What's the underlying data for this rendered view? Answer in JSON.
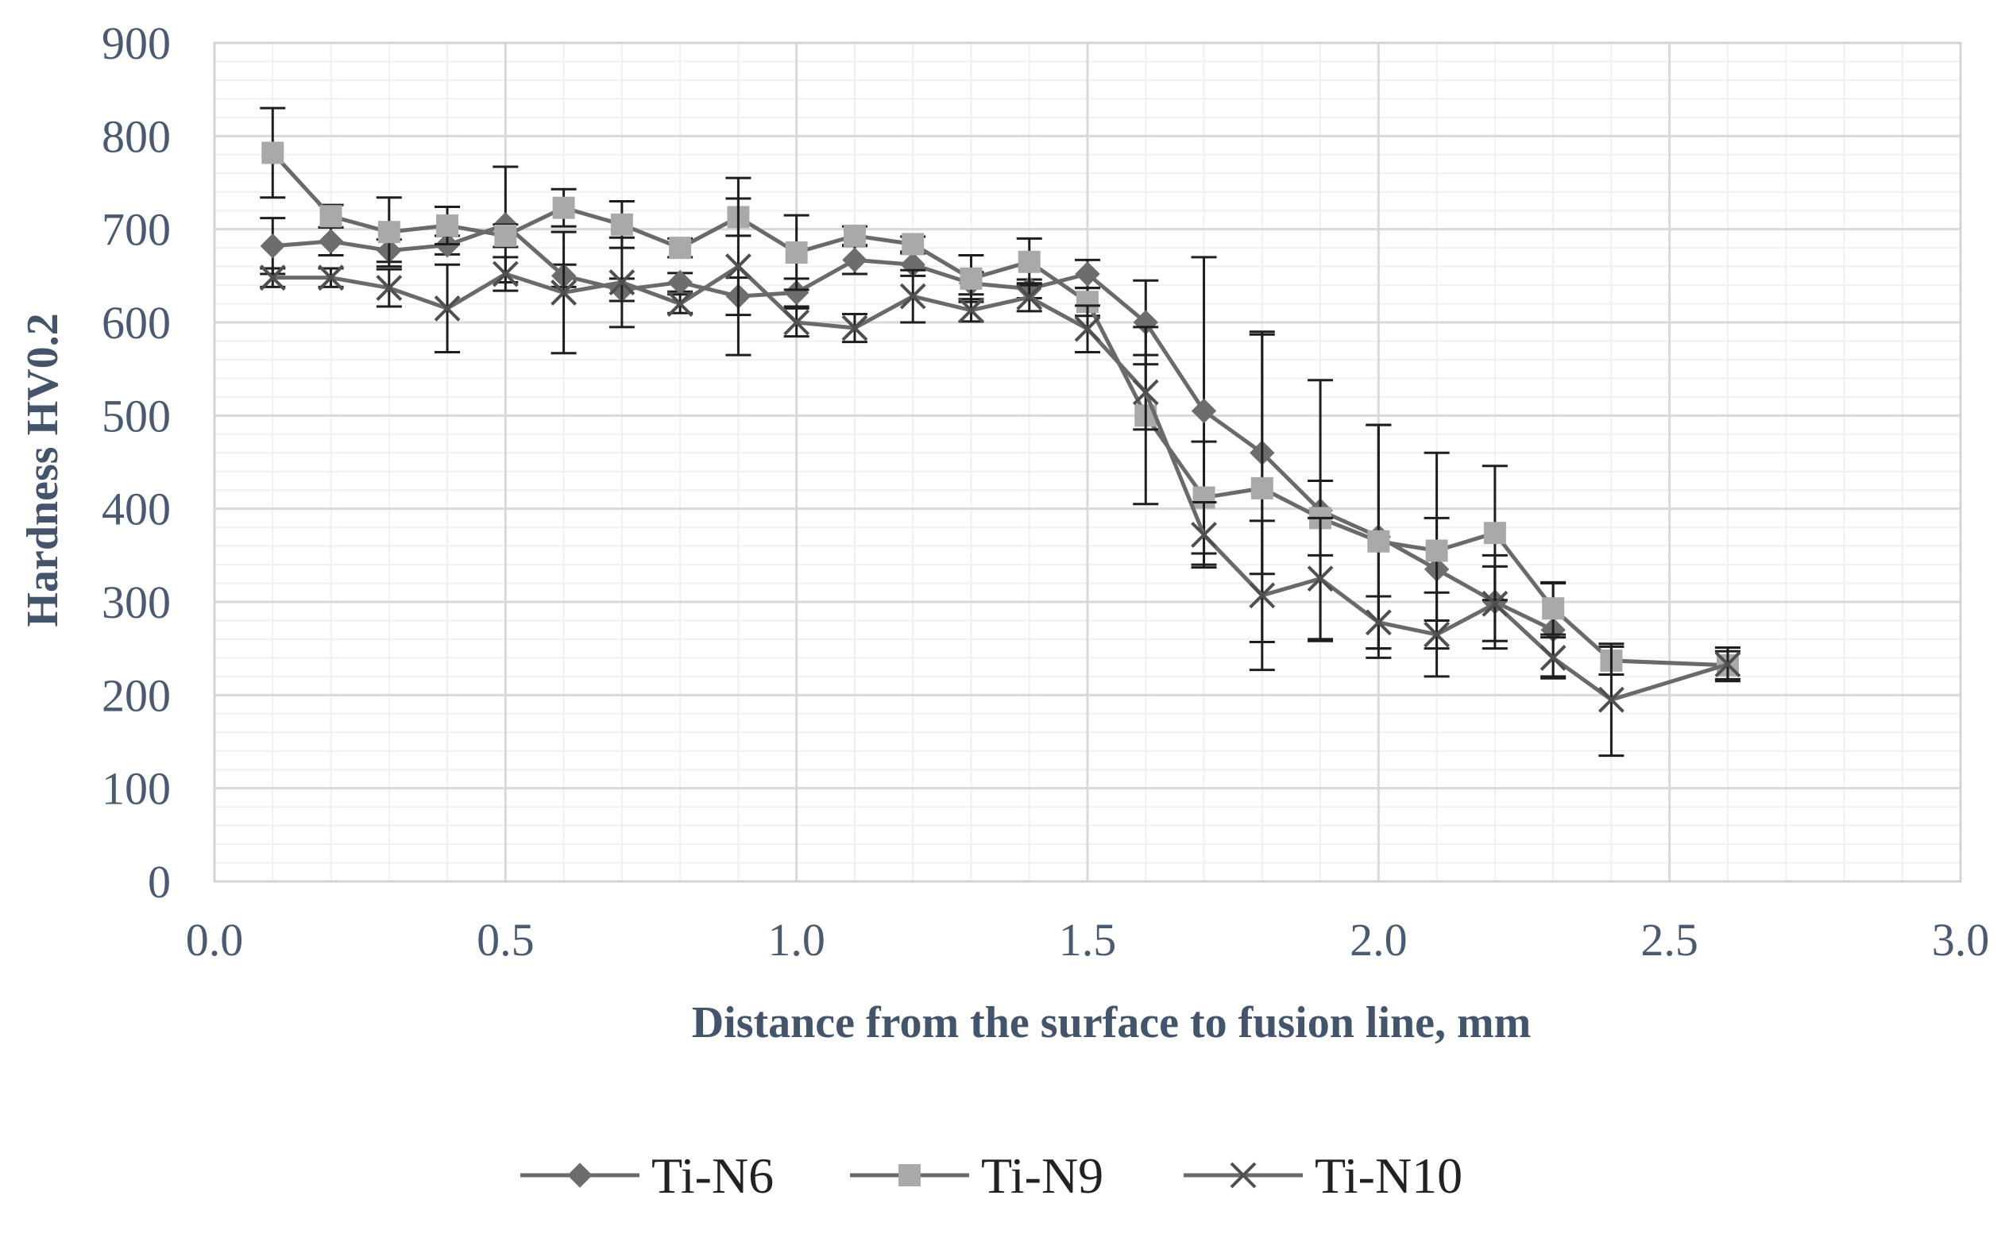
{
  "chart_data": {
    "type": "line",
    "title": "",
    "xlabel": "Distance from the surface to fusion line, mm",
    "ylabel": "Hardness HV0.2",
    "xlim": [
      0,
      3
    ],
    "ylim": [
      0,
      900
    ],
    "xticks": [
      0,
      0.5,
      1,
      1.5,
      2,
      2.5,
      3
    ],
    "xtick_labels": [
      "0.0",
      "0.5",
      "1.0",
      "1.5",
      "2.0",
      "2.5",
      "3.0"
    ],
    "yticks": [
      0,
      100,
      200,
      300,
      400,
      500,
      600,
      700,
      800,
      900
    ],
    "ytick_labels": [
      "0",
      "100",
      "200",
      "300",
      "400",
      "500",
      "600",
      "700",
      "800",
      "900"
    ],
    "x_minor_step": 0.1,
    "y_minor_step": 20,
    "grid": true,
    "legend_position": "bottom",
    "series": [
      {
        "name": "Ti-N6",
        "marker": "diamond",
        "color": "#6d6d6d",
        "x": [
          0.1,
          0.2,
          0.3,
          0.4,
          0.5,
          0.6,
          0.7,
          0.8,
          0.9,
          1.0,
          1.1,
          1.2,
          1.3,
          1.4,
          1.5,
          1.6,
          1.7,
          1.8,
          1.9,
          2.0,
          2.1,
          2.2,
          2.3
        ],
        "values": [
          682,
          687,
          677,
          683,
          705,
          650,
          635,
          643,
          628,
          632,
          667,
          662,
          642,
          636,
          652,
          600,
          505,
          460,
          398,
          370,
          335,
          300,
          270
        ],
        "errors": [
          30,
          15,
          12,
          10,
          62,
          12,
          12,
          10,
          20,
          15,
          15,
          12,
          12,
          10,
          15,
          45,
          165,
          130,
          140,
          120,
          55,
          50,
          50
        ]
      },
      {
        "name": "Ti-N9",
        "marker": "square",
        "color": "#a9a9a9",
        "x": [
          0.1,
          0.2,
          0.3,
          0.4,
          0.5,
          0.6,
          0.7,
          0.8,
          0.9,
          1.0,
          1.1,
          1.2,
          1.3,
          1.4,
          1.5,
          1.6,
          1.7,
          1.8,
          1.9,
          2.0,
          2.1,
          2.2,
          2.3,
          2.4,
          2.6
        ],
        "values": [
          782,
          714,
          697,
          704,
          693,
          723,
          705,
          680,
          713,
          675,
          693,
          684,
          647,
          665,
          622,
          500,
          412,
          422,
          390,
          365,
          355,
          374,
          293,
          237,
          232
        ],
        "errors": [
          48,
          12,
          37,
          20,
          12,
          20,
          25,
          10,
          20,
          40,
          10,
          8,
          25,
          25,
          15,
          95,
          60,
          165,
          40,
          125,
          105,
          72,
          28,
          15,
          15
        ]
      },
      {
        "name": "Ti-N10",
        "marker": "x",
        "color": "#4f4f4f",
        "x": [
          0.1,
          0.2,
          0.3,
          0.4,
          0.5,
          0.6,
          0.7,
          0.8,
          0.9,
          1.0,
          1.1,
          1.2,
          1.3,
          1.4,
          1.5,
          1.6,
          1.7,
          1.8,
          1.9,
          2.0,
          2.1,
          2.2,
          2.3,
          2.4,
          2.6
        ],
        "values": [
          648,
          648,
          637,
          615,
          652,
          632,
          643,
          620,
          660,
          600,
          594,
          628,
          613,
          627,
          593,
          525,
          372,
          307,
          325,
          278,
          265,
          298,
          240,
          195,
          233
        ],
        "errors": [
          10,
          10,
          20,
          47,
          18,
          65,
          48,
          10,
          95,
          15,
          15,
          28,
          12,
          15,
          25,
          40,
          35,
          80,
          65,
          28,
          45,
          40,
          22,
          60,
          18
        ]
      }
    ]
  }
}
